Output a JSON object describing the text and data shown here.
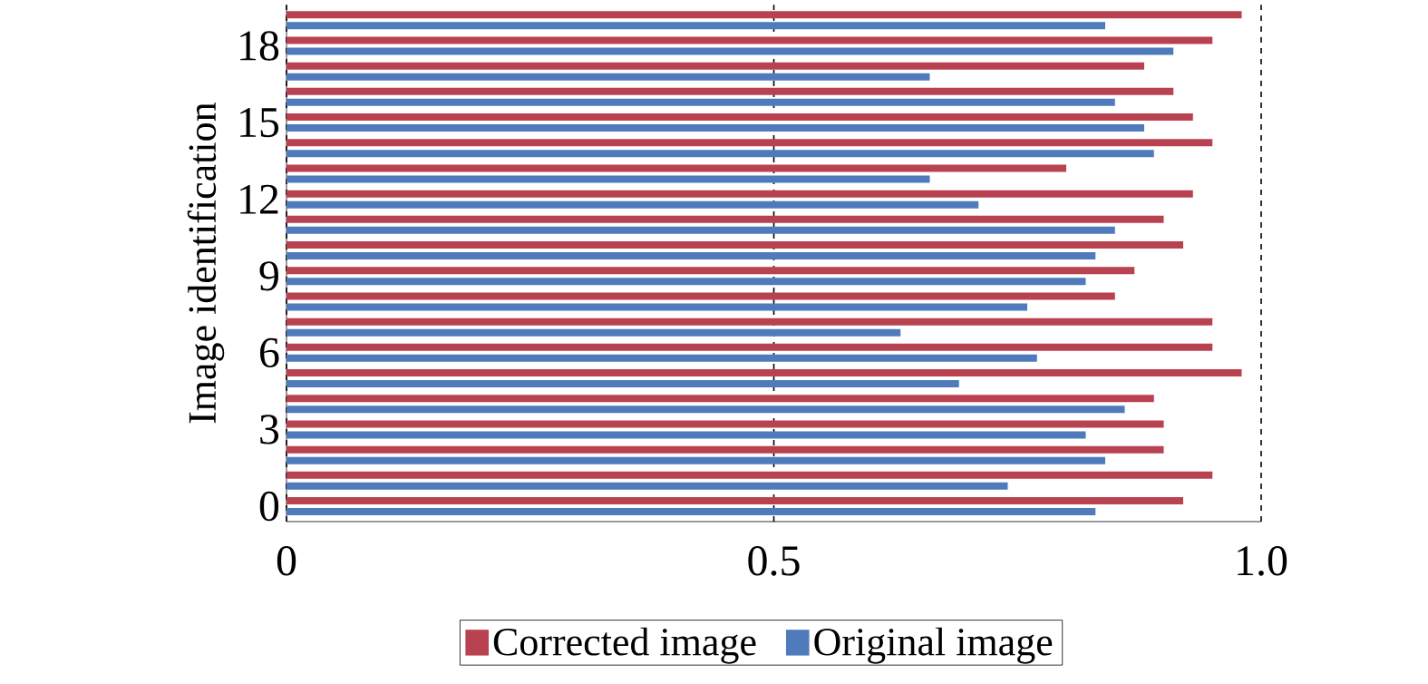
{
  "chart_data": {
    "type": "bar",
    "orientation": "horizontal",
    "ylabel": "Image identification",
    "categories": [
      null,
      "18",
      null,
      null,
      "15",
      null,
      null,
      "12",
      null,
      null,
      "9",
      null,
      null,
      "6",
      null,
      null,
      "3",
      null,
      null,
      "0"
    ],
    "series": [
      {
        "name": "Corrected image",
        "color": "#b84250",
        "values": [
          0.98,
          0.95,
          0.88,
          0.91,
          0.93,
          0.95,
          0.8,
          0.93,
          0.9,
          0.92,
          0.87,
          0.85,
          0.95,
          0.95,
          0.98,
          0.89,
          0.9,
          0.9,
          0.95,
          0.92
        ]
      },
      {
        "name": "Original image",
        "color": "#4f7bbd",
        "values": [
          0.84,
          0.91,
          0.66,
          0.85,
          0.88,
          0.89,
          0.66,
          0.71,
          0.85,
          0.83,
          0.82,
          0.76,
          0.63,
          0.77,
          0.69,
          0.86,
          0.82,
          0.84,
          0.74,
          0.83
        ]
      }
    ],
    "xlim": [
      0,
      1
    ],
    "xticks": [
      0,
      0.5,
      {
        "value": 1,
        "label": "1.0"
      }
    ],
    "grid": "x",
    "legend": "bottom"
  }
}
